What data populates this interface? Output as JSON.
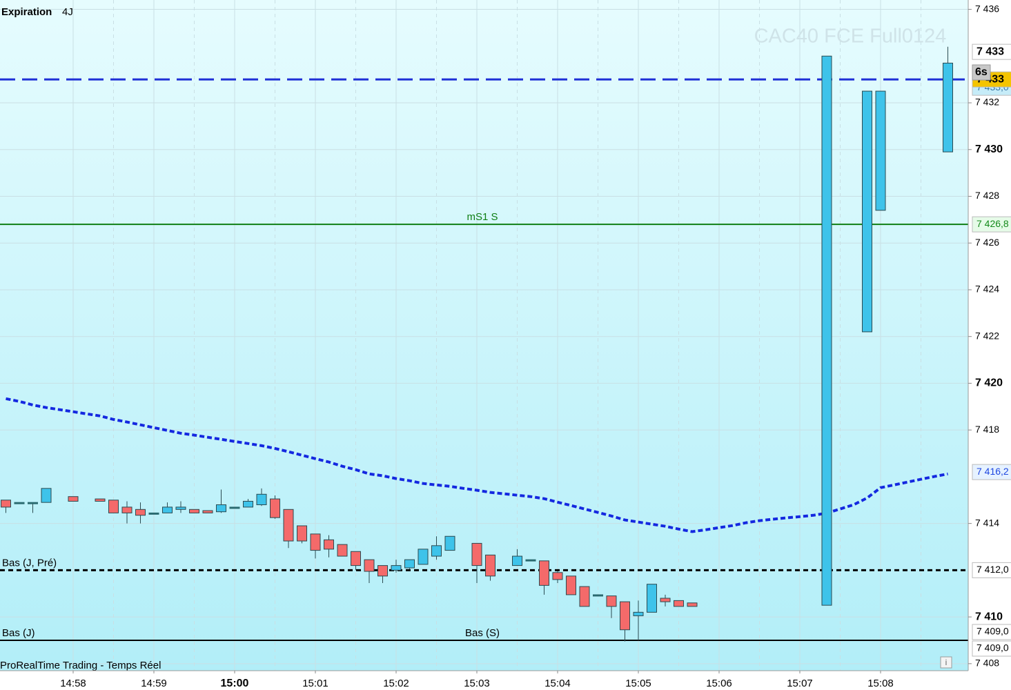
{
  "chart_data": {
    "type": "candlestick",
    "title": "CAC40 FCE Full0124",
    "expiration_label": "Expiration",
    "expiration_value": "4J",
    "footer": "ProRealTime Trading - Temps Réel",
    "timer": "6s",
    "up_color": "#3ec3ea",
    "down_color": "#f46a6a",
    "categories": [
      null,
      null,
      null,
      null,
      null,
      "14:58",
      null,
      null,
      null,
      null,
      null,
      "14:59",
      null,
      null,
      null,
      null,
      null,
      "15:00",
      null,
      null,
      null,
      null,
      null,
      "15:01",
      null,
      null,
      null,
      null,
      null,
      "15:02",
      null,
      null,
      null,
      null,
      null,
      "15:03",
      null,
      null,
      null,
      null,
      null,
      "15:04",
      null,
      null,
      null,
      null,
      null,
      "15:05",
      null,
      null,
      null,
      null,
      null,
      "15:06",
      null,
      null,
      null,
      null,
      null,
      "15:07",
      null,
      null,
      null,
      null,
      null,
      "15:08",
      null,
      null,
      null,
      null,
      null
    ],
    "open": [
      7415.0,
      7414.9,
      7414.9,
      7414.9,
      null,
      7415.15,
      null,
      7415.05,
      7415.0,
      7414.7,
      7414.6,
      7414.45,
      7414.45,
      7414.6,
      7414.6,
      7414.55,
      7414.5,
      7414.7,
      7414.7,
      7414.8,
      7415.05,
      7414.6,
      7413.9,
      7413.55,
      7413.3,
      7413.1,
      7412.8,
      7412.45,
      7412.2,
      7412.0,
      7412.1,
      7412.25,
      7412.6,
      7412.85,
      null,
      7413.15,
      7412.65,
      null,
      7412.2,
      7412.45,
      7412.4,
      7411.9,
      7411.75,
      7411.3,
      7410.95,
      7410.9,
      7410.65,
      7410.05,
      7410.2,
      7410.8,
      7410.7,
      7410.6,
      null,
      null,
      null,
      null,
      null,
      null,
      null,
      null,
      null,
      7410.5,
      null,
      null,
      7422.2,
      7427.4,
      null,
      null,
      null,
      null,
      7429.9
    ],
    "high": [
      7415.0,
      7414.9,
      7414.9,
      7415.5,
      null,
      7415.15,
      null,
      7415.05,
      7415.0,
      7414.95,
      7414.9,
      7414.45,
      7414.9,
      7414.95,
      7414.6,
      7414.55,
      7415.45,
      7414.7,
      7415.05,
      7415.5,
      7415.2,
      7414.6,
      7413.9,
      7413.55,
      7413.5,
      7413.1,
      7412.8,
      7412.45,
      7412.2,
      7412.45,
      7412.45,
      7412.9,
      7413.45,
      7413.45,
      null,
      7413.15,
      7412.65,
      null,
      7412.9,
      7412.45,
      7412.4,
      7411.95,
      7411.75,
      7411.3,
      7410.95,
      7410.9,
      7410.65,
      7410.7,
      7411.4,
      7410.95,
      7410.7,
      7410.6,
      null,
      null,
      null,
      null,
      null,
      null,
      null,
      null,
      null,
      7434.0,
      null,
      null,
      7432.5,
      7432.5,
      null,
      null,
      null,
      null,
      7434.4
    ],
    "low": [
      7414.45,
      7414.9,
      7414.45,
      7414.9,
      null,
      7414.95,
      null,
      7414.95,
      7414.45,
      7414.0,
      7414.0,
      7414.45,
      7414.45,
      7414.45,
      7414.45,
      7414.45,
      7414.45,
      7414.7,
      7414.7,
      7414.75,
      7414.2,
      7412.95,
      7413.15,
      7412.5,
      7412.55,
      7412.6,
      7412.0,
      7411.45,
      7411.45,
      7411.9,
      7412.05,
      7412.25,
      7412.45,
      7412.85,
      null,
      7411.45,
      7411.55,
      null,
      7412.2,
      7412.45,
      7410.95,
      7411.45,
      7410.95,
      7410.45,
      7410.95,
      7409.95,
      7408.95,
      7409.0,
      7410.2,
      7410.45,
      7410.45,
      7410.45,
      null,
      null,
      null,
      null,
      null,
      null,
      null,
      null,
      null,
      7410.5,
      null,
      null,
      7422.2,
      7427.4,
      null,
      null,
      null,
      null,
      7429.9
    ],
    "close": [
      7414.7,
      7414.9,
      7414.9,
      7415.5,
      null,
      7414.95,
      null,
      7414.95,
      7414.45,
      7414.45,
      7414.35,
      7414.45,
      7414.7,
      7414.7,
      7414.45,
      7414.45,
      7414.8,
      7414.7,
      7414.95,
      7415.25,
      7414.25,
      7413.25,
      7413.25,
      7412.85,
      7412.9,
      7412.6,
      7412.2,
      7411.95,
      7411.75,
      7412.2,
      7412.45,
      7412.9,
      7413.05,
      7413.45,
      null,
      7412.2,
      7411.75,
      null,
      7412.6,
      7412.45,
      7411.35,
      7411.6,
      7410.95,
      7410.45,
      7410.95,
      7410.45,
      7409.45,
      7410.2,
      7411.4,
      7410.65,
      7410.45,
      7410.45,
      null,
      null,
      null,
      null,
      null,
      null,
      null,
      null,
      null,
      7434.0,
      null,
      null,
      7432.5,
      7432.5,
      null,
      null,
      null,
      null,
      7433.7
    ],
    "ma": {
      "color": "#1428e0",
      "values": [
        7419.34,
        7419.22,
        7419.07,
        7418.96,
        7418.87,
        7418.78,
        7418.69,
        7418.6,
        7418.45,
        7418.34,
        7418.22,
        7418.1,
        7417.98,
        7417.86,
        7417.78,
        7417.69,
        7417.6,
        7417.51,
        7417.42,
        7417.33,
        7417.21,
        7417.07,
        7416.92,
        7416.77,
        7416.63,
        7416.45,
        7416.3,
        7416.12,
        7416.04,
        7415.92,
        7415.83,
        7415.71,
        7415.65,
        7415.59,
        7415.5,
        7415.42,
        7415.33,
        7415.27,
        7415.21,
        7415.15,
        7415.06,
        7414.91,
        7414.77,
        7414.62,
        7414.47,
        7414.32,
        7414.15,
        7414.06,
        7413.97,
        7413.88,
        7413.76,
        7413.65,
        7413.73,
        7413.82,
        7413.91,
        7414.03,
        7414.12,
        7414.18,
        7414.24,
        7414.29,
        7414.35,
        7414.44,
        7414.62,
        7414.8,
        7415.09,
        7415.53,
        7415.65,
        7415.77,
        7415.89,
        7416.01,
        7416.12
      ]
    },
    "ylim": [
      7407.7,
      7436.4
    ],
    "yticks": [
      {
        "value": 7408,
        "label": "7 408"
      },
      {
        "value": 7410,
        "label": "7 410"
      },
      {
        "value": 7414,
        "label": "7 414"
      },
      {
        "value": 7418,
        "label": "7 418"
      },
      {
        "value": 7420,
        "label": "7 420"
      },
      {
        "value": 7422,
        "label": "7 422"
      },
      {
        "value": 7424,
        "label": "7 424"
      },
      {
        "value": 7426,
        "label": "7 426"
      },
      {
        "value": 7428,
        "label": "7 428"
      },
      {
        "value": 7430,
        "label": "7 430"
      },
      {
        "value": 7432,
        "label": "7 432"
      },
      {
        "value": 7436,
        "label": "7 436"
      }
    ],
    "grid": true,
    "levels": [
      {
        "value": 7433,
        "color": "#1e2ed6",
        "dash": "long"
      },
      {
        "value": 7426.8,
        "color": "#0e7e12",
        "dash": "solid",
        "labels": [
          {
            "text": "mS1 S",
            "align": "center"
          }
        ]
      },
      {
        "value": 7412.0,
        "color": "#000000",
        "dash": "short",
        "labels": [
          {
            "text": "Bas (J, Pré)",
            "align": "left"
          }
        ]
      },
      {
        "value": 7409.0,
        "color": "#000000",
        "dash": "solid",
        "labels": [
          {
            "text": "Bas (J)",
            "align": "left"
          },
          {
            "text": "Bas (S)",
            "align": "center"
          }
        ]
      }
    ],
    "price_tags": [
      {
        "value": 7433,
        "label": "7 433",
        "fill": "#ffffff",
        "color": "#000000",
        "bold": true
      },
      {
        "value": 7433.0,
        "label": "7 433,0",
        "fill": "#c6ecf8",
        "color": "#3b78a6"
      },
      {
        "value": 7433,
        "label": "7 433",
        "fill": "#f4c400",
        "color": "#000000",
        "bold": true
      },
      {
        "value": 7426.8,
        "label": "7 426,8",
        "fill": "#e6fbe8",
        "color": "#148a1a"
      },
      {
        "value": 7416.2,
        "label": "7 416,2",
        "fill": "#e6f2ff",
        "color": "#1e46e0"
      },
      {
        "value": 7412.0,
        "label": "7 412,0",
        "fill": "#ffffff",
        "color": "#000000"
      },
      {
        "value": 7409.0,
        "label": "7 409,0",
        "fill": "#ffffff",
        "color": "#000000"
      },
      {
        "value": 7409.0,
        "label": "7 409,0",
        "fill": "#ffffff",
        "color": "#000000"
      }
    ]
  }
}
